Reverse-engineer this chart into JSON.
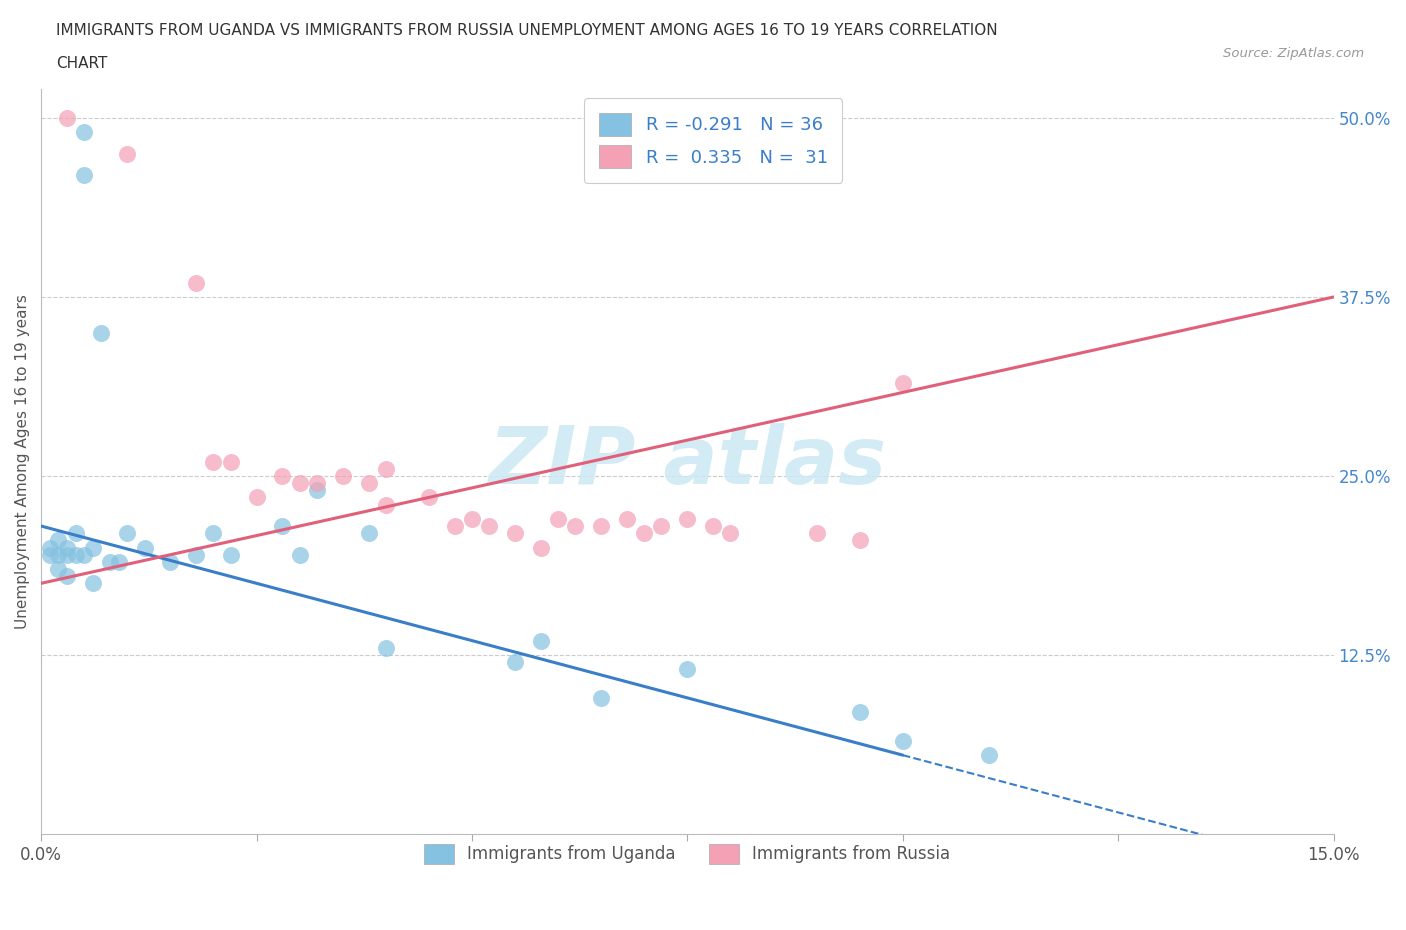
{
  "title_line1": "IMMIGRANTS FROM UGANDA VS IMMIGRANTS FROM RUSSIA UNEMPLOYMENT AMONG AGES 16 TO 19 YEARS CORRELATION",
  "title_line2": "CHART",
  "source": "Source: ZipAtlas.com",
  "ylabel": "Unemployment Among Ages 16 to 19 years",
  "legend_label1": "Immigrants from Uganda",
  "legend_label2": "Immigrants from Russia",
  "r1": -0.291,
  "n1": 36,
  "r2": 0.335,
  "n2": 31,
  "color1": "#85c1e0",
  "color2": "#f4a0b5",
  "trendline1_color": "#3a7ec8",
  "trendline2_color": "#e0607a",
  "xlim": [
    0.0,
    0.15
  ],
  "ylim": [
    0.0,
    0.52
  ],
  "ytick_positions": [
    0.125,
    0.25,
    0.375,
    0.5
  ],
  "ytick_labels": [
    "12.5%",
    "25.0%",
    "37.5%",
    "50.0%"
  ],
  "uganda_x": [
    0.001,
    0.001,
    0.002,
    0.002,
    0.002,
    0.003,
    0.003,
    0.003,
    0.004,
    0.004,
    0.005,
    0.005,
    0.005,
    0.006,
    0.006,
    0.007,
    0.008,
    0.009,
    0.01,
    0.012,
    0.015,
    0.018,
    0.02,
    0.022,
    0.028,
    0.03,
    0.032,
    0.038,
    0.04,
    0.055,
    0.058,
    0.065,
    0.075,
    0.095,
    0.1,
    0.11
  ],
  "uganda_y": [
    0.2,
    0.195,
    0.205,
    0.195,
    0.185,
    0.195,
    0.2,
    0.18,
    0.21,
    0.195,
    0.49,
    0.46,
    0.195,
    0.2,
    0.175,
    0.35,
    0.19,
    0.19,
    0.21,
    0.2,
    0.19,
    0.195,
    0.21,
    0.195,
    0.215,
    0.195,
    0.24,
    0.21,
    0.13,
    0.12,
    0.135,
    0.095,
    0.115,
    0.085,
    0.065,
    0.055
  ],
  "russia_x": [
    0.003,
    0.01,
    0.018,
    0.02,
    0.022,
    0.025,
    0.028,
    0.03,
    0.032,
    0.035,
    0.038,
    0.04,
    0.04,
    0.045,
    0.048,
    0.05,
    0.052,
    0.055,
    0.058,
    0.06,
    0.062,
    0.065,
    0.068,
    0.07,
    0.072,
    0.075,
    0.078,
    0.08,
    0.09,
    0.095,
    0.1
  ],
  "russia_y": [
    0.5,
    0.475,
    0.385,
    0.26,
    0.26,
    0.235,
    0.25,
    0.245,
    0.245,
    0.25,
    0.245,
    0.23,
    0.255,
    0.235,
    0.215,
    0.22,
    0.215,
    0.21,
    0.2,
    0.22,
    0.215,
    0.215,
    0.22,
    0.21,
    0.215,
    0.22,
    0.215,
    0.21,
    0.21,
    0.205,
    0.315
  ],
  "trendline_ug_x0": 0.0,
  "trendline_ug_y0": 0.215,
  "trendline_ug_x1": 0.1,
  "trendline_ug_y1": 0.055,
  "trendline_ru_x0": 0.0,
  "trendline_ru_y0": 0.175,
  "trendline_ru_x1": 0.15,
  "trendline_ru_y1": 0.375
}
